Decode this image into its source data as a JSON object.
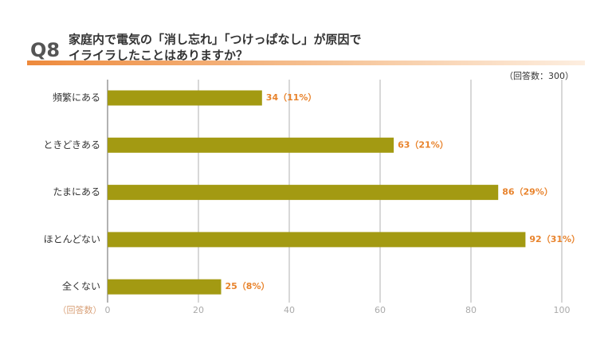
{
  "chart_data": {
    "type": "bar",
    "orientation": "horizontal",
    "question": "Q8",
    "title_lines": [
      "家庭内で電気の「消し忘れ」「つけっぱなし」が原因で",
      "イライラしたことはありますか？"
    ],
    "note": "（回答数：300）",
    "x_label": "（回答数）",
    "categories": [
      "頻繁にある",
      "ときどきある",
      "たまにある",
      "ほとんどない",
      "全くない"
    ],
    "values": [
      34,
      63,
      86,
      92,
      25
    ],
    "value_labels": [
      "34（11%）",
      "63（21%）",
      "86（29%）",
      "92（31%）",
      "25（8%）"
    ],
    "color": "#a39a12",
    "label_color": "#e8832c",
    "xlim": [
      0,
      100
    ],
    "xticks": [
      0,
      20,
      40,
      60,
      80,
      100
    ],
    "grid": true
  }
}
